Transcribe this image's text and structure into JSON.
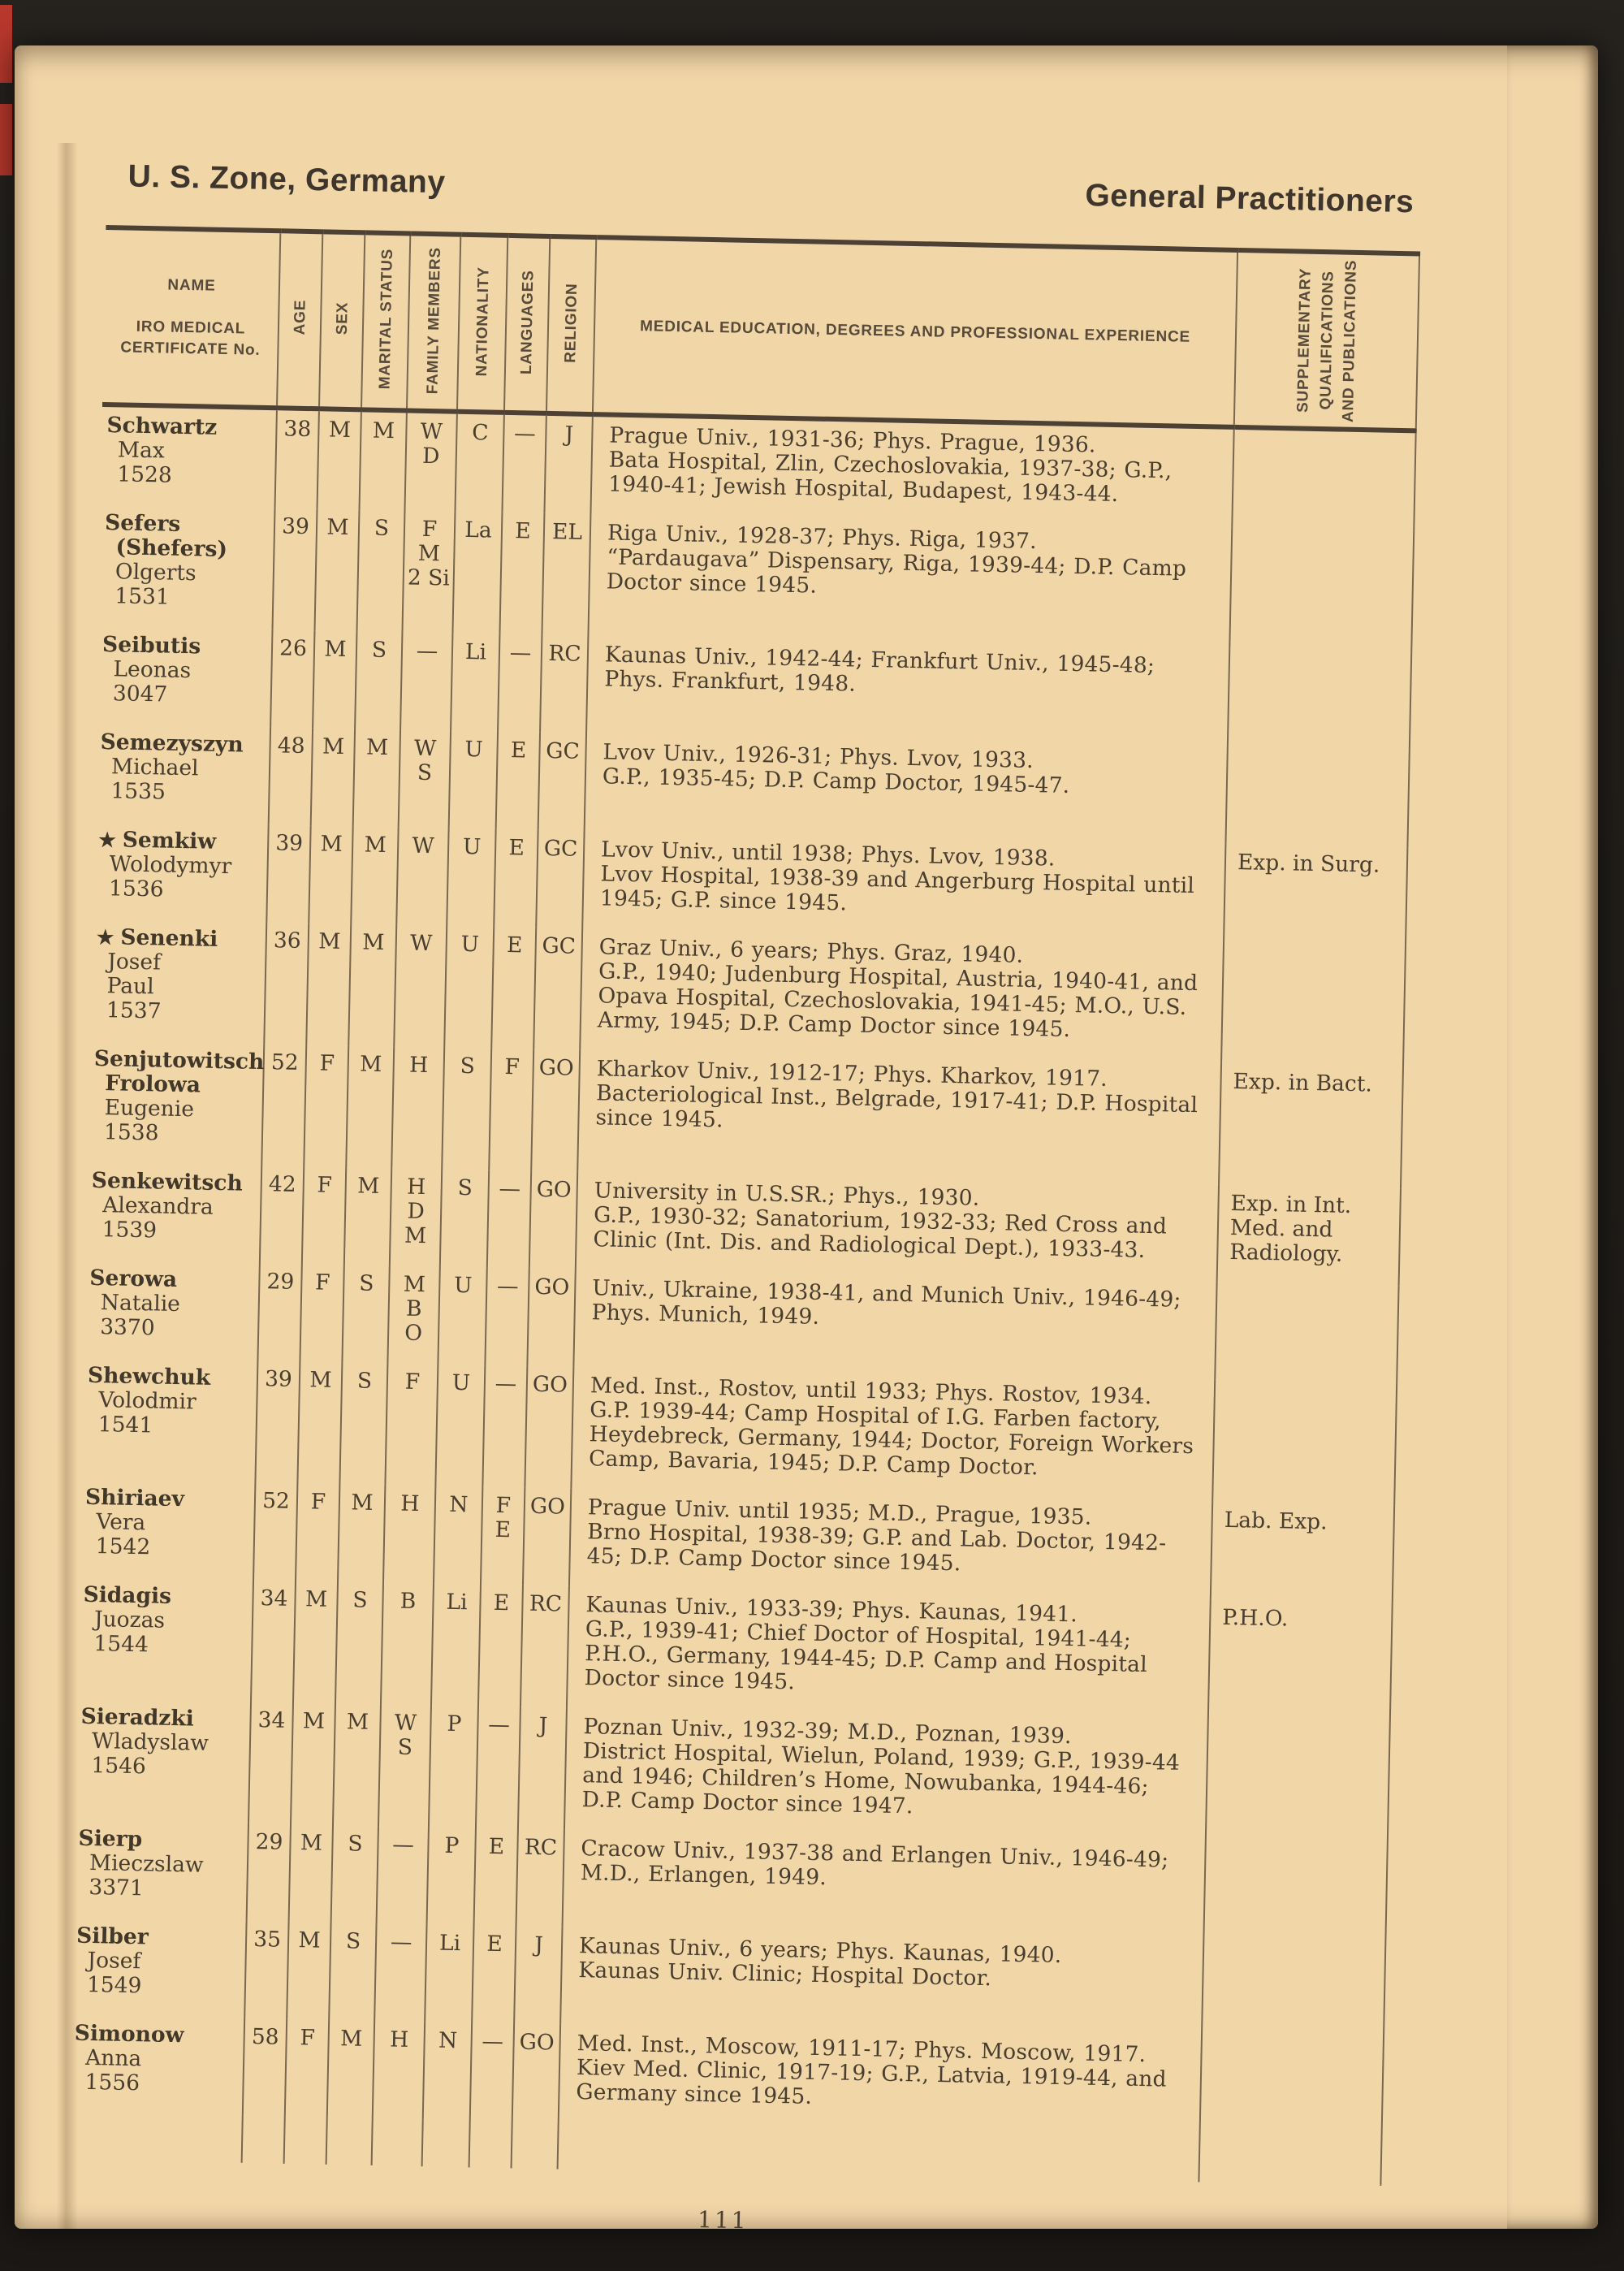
{
  "page": {
    "header_left": "U. S. Zone, Germany",
    "header_right": "General Practitioners",
    "page_number": "111"
  },
  "colors": {
    "background": "#211e1a",
    "paper": "#f1d6a8",
    "ink": "#453a2d",
    "rule": "#4c4134",
    "registration_mark_red": "#b8382c"
  },
  "table": {
    "headers": {
      "name": [
        "NAME",
        "IRO MEDICAL",
        "CERTIFICATE No."
      ],
      "rotated": [
        "AGE",
        "SEX",
        "MARITAL STATUS",
        "FAMILY MEMBERS",
        "NATIONALITY",
        "LANGUAGES",
        "RELIGION"
      ],
      "education": "MEDICAL EDUCATION, DEGREES AND PROFESSIONAL EXPERIENCE",
      "supplementary": [
        "SUPPLEMENTARY",
        "QUALIFICATIONS",
        "AND PUBLICATIONS"
      ]
    },
    "rows": [
      {
        "star": false,
        "name_lines": [
          "Schwartz",
          "Max",
          "1528"
        ],
        "name_bold_lines": 1,
        "age": "38",
        "sex": "M",
        "marital": "M",
        "family": [
          "W",
          "D"
        ],
        "nationality": "C",
        "languages": [
          "—"
        ],
        "religion": "J",
        "education": [
          "Prague Univ., 1931-36; Phys. Prague, 1936.",
          "Bata Hospital, Zlin, Czechoslovakia, 1937-38; G.P., 1940-41; Jewish Hospital, Budapest, 1943-44."
        ],
        "supplementary": ""
      },
      {
        "star": false,
        "name_lines": [
          "Sefers",
          "(Shefers)",
          "Olgerts",
          "1531"
        ],
        "name_bold_lines": 2,
        "age": "39",
        "sex": "M",
        "marital": "S",
        "family": [
          "F",
          "M",
          "2 Si"
        ],
        "nationality": "La",
        "languages": [
          "E"
        ],
        "religion": "EL",
        "education": [
          "Riga Univ., 1928-37; Phys. Riga, 1937.",
          "“Pardaugava” Dispensary, Riga, 1939-44; D.P. Camp Doctor since 1945."
        ],
        "supplementary": ""
      },
      {
        "star": false,
        "name_lines": [
          "Seibutis",
          "Leonas",
          "3047"
        ],
        "name_bold_lines": 1,
        "age": "26",
        "sex": "M",
        "marital": "S",
        "family": [
          "—"
        ],
        "nationality": "Li",
        "languages": [
          "—"
        ],
        "religion": "RC",
        "education": [
          "Kaunas Univ., 1942-44; Frankfurt Univ., 1945-48; Phys. Frankfurt, 1948."
        ],
        "supplementary": ""
      },
      {
        "star": false,
        "name_lines": [
          "Semezyszyn",
          "Michael",
          "1535"
        ],
        "name_bold_lines": 1,
        "age": "48",
        "sex": "M",
        "marital": "M",
        "family": [
          "W",
          "S"
        ],
        "nationality": "U",
        "languages": [
          "E"
        ],
        "religion": "GC",
        "education": [
          "Lvov Univ., 1926-31; Phys. Lvov, 1933.",
          "G.P., 1935-45; D.P. Camp Doctor, 1945-47."
        ],
        "supplementary": ""
      },
      {
        "star": true,
        "name_lines": [
          "Semkiw",
          "Wolodymyr",
          "1536"
        ],
        "name_bold_lines": 1,
        "age": "39",
        "sex": "M",
        "marital": "M",
        "family": [
          "W"
        ],
        "nationality": "U",
        "languages": [
          "E"
        ],
        "religion": "GC",
        "education": [
          "Lvov Univ., until 1938; Phys. Lvov, 1938.",
          "Lvov Hospital, 1938-39 and Angerburg Hospital until 1945; G.P. since 1945."
        ],
        "supplementary": "Exp. in Surg."
      },
      {
        "star": true,
        "name_lines": [
          "Senenki",
          "Josef",
          "Paul",
          "1537"
        ],
        "name_bold_lines": 1,
        "age": "36",
        "sex": "M",
        "marital": "M",
        "family": [
          "W"
        ],
        "nationality": "U",
        "languages": [
          "E"
        ],
        "religion": "GC",
        "education": [
          "Graz Univ., 6 years; Phys. Graz, 1940.",
          "G.P., 1940; Judenburg Hospital, Austria, 1940-41, and Opava Hospital, Czechoslovakia, 1941-45; M.O., U.S. Army, 1945; D.P. Camp Doctor since 1945."
        ],
        "supplementary": ""
      },
      {
        "star": false,
        "name_lines": [
          "Senjutowitsch",
          "Frolowa",
          "Eugenie",
          "1538"
        ],
        "name_bold_lines": 2,
        "age": "52",
        "sex": "F",
        "marital": "M",
        "family": [
          "H"
        ],
        "nationality": "S",
        "languages": [
          "F"
        ],
        "religion": "GO",
        "education": [
          "Kharkov Univ., 1912-17; Phys. Kharkov, 1917.",
          "Bacteriological Inst., Belgrade, 1917-41; D.P. Hospital since 1945."
        ],
        "supplementary": "Exp. in Bact."
      },
      {
        "star": false,
        "name_lines": [
          "Senkewitsch",
          "Alexandra",
          "1539"
        ],
        "name_bold_lines": 1,
        "age": "42",
        "sex": "F",
        "marital": "M",
        "family": [
          "H",
          "D",
          "M"
        ],
        "nationality": "S",
        "languages": [
          "—"
        ],
        "religion": "GO",
        "education": [
          "University in U.S.SR.; Phys., 1930.",
          "G.P., 1930-32; Sanatorium, 1932-33; Red Cross and Clinic (Int. Dis. and Radiological Dept.), 1933-43."
        ],
        "supplementary": "Exp. in Int. Med. and Radiology."
      },
      {
        "star": false,
        "name_lines": [
          "Serowa",
          "Natalie",
          "3370"
        ],
        "name_bold_lines": 1,
        "age": "29",
        "sex": "F",
        "marital": "S",
        "family": [
          "M",
          "B",
          "O"
        ],
        "nationality": "U",
        "languages": [
          "—"
        ],
        "religion": "GO",
        "education": [
          "Univ., Ukraine, 1938-41, and Munich Univ., 1946-49; Phys. Munich, 1949."
        ],
        "supplementary": ""
      },
      {
        "star": false,
        "name_lines": [
          "Shewchuk",
          "Volodmir",
          "1541"
        ],
        "name_bold_lines": 1,
        "age": "39",
        "sex": "M",
        "marital": "S",
        "family": [
          "F"
        ],
        "nationality": "U",
        "languages": [
          "—"
        ],
        "religion": "GO",
        "education": [
          "Med. Inst., Rostov, until 1933; Phys. Rostov, 1934.",
          "G.P. 1939-44; Camp Hospital of I.G. Farben factory, Heydebreck, Germany, 1944; Doctor, Foreign Workers Camp, Bavaria, 1945; D.P. Camp Doctor."
        ],
        "supplementary": ""
      },
      {
        "star": false,
        "name_lines": [
          "Shiriaev",
          "Vera",
          "1542"
        ],
        "name_bold_lines": 1,
        "age": "52",
        "sex": "F",
        "marital": "M",
        "family": [
          "H"
        ],
        "nationality": "N",
        "languages": [
          "F",
          "E"
        ],
        "religion": "GO",
        "education": [
          "Prague Univ. until 1935; M.D., Prague, 1935.",
          "Brno Hospital, 1938-39; G.P. and Lab. Doctor, 1942-45; D.P. Camp Doctor since 1945."
        ],
        "supplementary": "Lab. Exp."
      },
      {
        "star": false,
        "name_lines": [
          "Sidagis",
          "Juozas",
          "1544"
        ],
        "name_bold_lines": 1,
        "age": "34",
        "sex": "M",
        "marital": "S",
        "family": [
          "B"
        ],
        "nationality": "Li",
        "languages": [
          "E"
        ],
        "religion": "RC",
        "education": [
          "Kaunas Univ., 1933-39; Phys. Kaunas, 1941.",
          "G.P., 1939-41; Chief Doctor of Hospital, 1941-44; P.H.O., Germany, 1944-45; D.P. Camp and Hospital Doctor since 1945."
        ],
        "supplementary": "P.H.O."
      },
      {
        "star": false,
        "name_lines": [
          "Sieradzki",
          "Wladyslaw",
          "1546"
        ],
        "name_bold_lines": 1,
        "age": "34",
        "sex": "M",
        "marital": "M",
        "family": [
          "W",
          "S"
        ],
        "nationality": "P",
        "languages": [
          "—"
        ],
        "religion": "J",
        "education": [
          "Poznan Univ., 1932-39; M.D., Poznan, 1939.",
          "District Hospital, Wielun, Poland, 1939; G.P., 1939-44 and 1946; Children’s Home, Nowubanka, 1944-46; D.P. Camp Doctor since 1947."
        ],
        "supplementary": ""
      },
      {
        "star": false,
        "name_lines": [
          "Sierp",
          "Mieczslaw",
          "3371"
        ],
        "name_bold_lines": 1,
        "age": "29",
        "sex": "M",
        "marital": "S",
        "family": [
          "—"
        ],
        "nationality": "P",
        "languages": [
          "E"
        ],
        "religion": "RC",
        "education": [
          "Cracow Univ., 1937-38 and Erlangen Univ., 1946-49; M.D., Erlangen, 1949."
        ],
        "supplementary": ""
      },
      {
        "star": false,
        "name_lines": [
          "Silber",
          "Josef",
          "1549"
        ],
        "name_bold_lines": 1,
        "age": "35",
        "sex": "M",
        "marital": "S",
        "family": [
          "—"
        ],
        "nationality": "Li",
        "languages": [
          "E"
        ],
        "religion": "J",
        "education": [
          "Kaunas Univ., 6 years; Phys. Kaunas, 1940.",
          "Kaunas Univ. Clinic; Hospital Doctor."
        ],
        "supplementary": ""
      },
      {
        "star": false,
        "name_lines": [
          "Simonow",
          "Anna",
          "1556"
        ],
        "name_bold_lines": 1,
        "age": "58",
        "sex": "F",
        "marital": "M",
        "family": [
          "H"
        ],
        "nationality": "N",
        "languages": [
          "—"
        ],
        "religion": "GO",
        "education": [
          "Med. Inst., Moscow, 1911-17; Phys. Moscow, 1917.",
          "Kiev Med. Clinic, 1917-19; G.P., Latvia, 1919-44, and Germany since 1945."
        ],
        "supplementary": ""
      }
    ]
  }
}
